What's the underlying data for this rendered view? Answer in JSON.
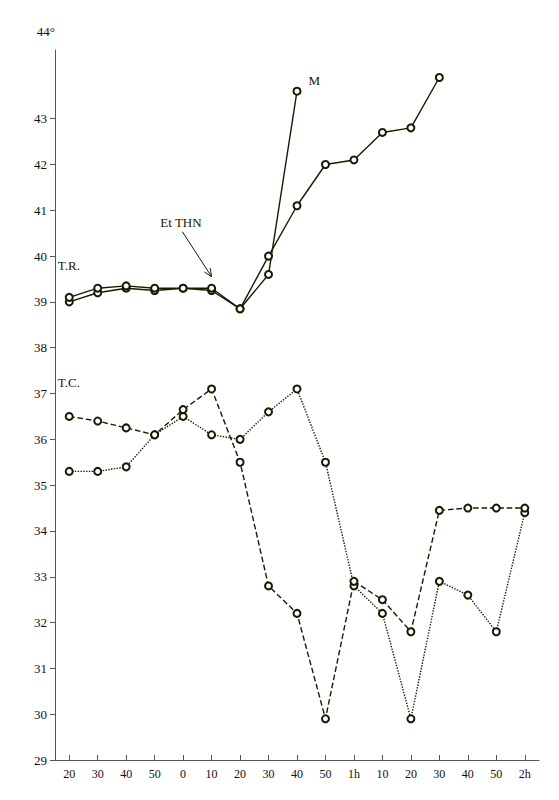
{
  "chart_data": {
    "type": "line",
    "color": "#1a1a00",
    "categories": [
      "20",
      "30",
      "40",
      "50",
      "0",
      "10",
      "20",
      "30",
      "40",
      "50",
      "1h",
      "10",
      "20",
      "30",
      "40",
      "50",
      "2h"
    ],
    "ylabel": "44°",
    "ylim": [
      29,
      44.5
    ],
    "yticks": [
      29,
      30,
      31,
      32,
      33,
      34,
      35,
      36,
      37,
      38,
      39,
      40,
      41,
      42,
      43
    ],
    "grid": false,
    "series": [
      {
        "line_style": "solid",
        "marker": "circle",
        "values": [
          39.0,
          39.2,
          39.3,
          39.25,
          39.3,
          39.25,
          38.85,
          39.6,
          43.6,
          null,
          null,
          null,
          null,
          null,
          null,
          null,
          null
        ]
      },
      {
        "line_style": "solid",
        "marker": "circle",
        "values": [
          39.1,
          39.3,
          39.35,
          39.3,
          39.3,
          39.3,
          38.85,
          40.0,
          41.1,
          42.0,
          42.1,
          42.7,
          42.8,
          43.9,
          null,
          null,
          null
        ]
      },
      {
        "line_style": "dotted",
        "marker": "circle",
        "values": [
          35.3,
          35.3,
          35.4,
          36.1,
          36.5,
          36.1,
          36.0,
          36.6,
          37.1,
          35.5,
          32.8,
          32.2,
          29.9,
          32.9,
          32.6,
          31.8,
          34.4
        ]
      },
      {
        "line_style": "dashed",
        "marker": "circle",
        "values": [
          36.5,
          36.4,
          36.25,
          36.1,
          36.65,
          37.1,
          35.5,
          32.8,
          32.2,
          29.9,
          32.9,
          32.5,
          31.8,
          34.45,
          34.5,
          34.5,
          34.5
        ]
      }
    ],
    "annotations": [
      {
        "text": "T.R.",
        "x": -0.4,
        "y": 39.65
      },
      {
        "text": "T.C.",
        "x": -0.4,
        "y": 37.1
      },
      {
        "text": "M",
        "x": 8.4,
        "y": 43.7
      },
      {
        "text": "Et THN",
        "x": 3.2,
        "y": 40.6,
        "arrow_x": 5,
        "arrow_y": 39.55
      }
    ]
  }
}
